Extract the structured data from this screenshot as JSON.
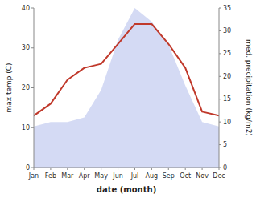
{
  "chart_data": {
    "type": "line",
    "categories": [
      "Jan",
      "Feb",
      "Mar",
      "Apr",
      "May",
      "Jun",
      "Jul",
      "Aug",
      "Sep",
      "Oct",
      "Nov",
      "Dec"
    ],
    "xlabel": "date (month)",
    "ylabel": "max temp (C)",
    "y2label": "med. precipitation (kg/m2)",
    "series": [
      {
        "type": "area",
        "axis": "y2",
        "color": "#c5cef0",
        "values": [
          9,
          10,
          10,
          11,
          17,
          28,
          35,
          32,
          27,
          18,
          10,
          9
        ]
      },
      {
        "type": "line",
        "color": "#c0392b",
        "values": [
          13,
          16,
          22,
          25,
          26,
          31,
          36,
          36,
          31,
          25,
          14,
          13
        ]
      }
    ],
    "ylim": [
      0,
      40
    ],
    "yticks": [
      0,
      10,
      20,
      30,
      40
    ],
    "y2lim": [
      0,
      35
    ],
    "y2ticks": [
      0,
      5,
      10,
      15,
      20,
      25,
      30,
      35
    ],
    "grid": false
  }
}
